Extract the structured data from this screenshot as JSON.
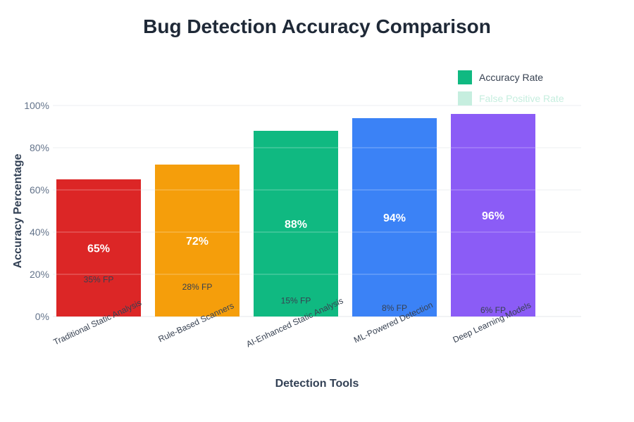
{
  "chart_data": {
    "type": "bar",
    "title": "Bug Detection Accuracy Comparison",
    "xlabel": "Detection Tools",
    "ylabel": "Accuracy Percentage",
    "ylim": [
      0,
      100
    ],
    "yticks": [
      "0%",
      "20%",
      "40%",
      "60%",
      "80%",
      "100%"
    ],
    "grid": true,
    "legend_position": "top-right",
    "categories": [
      "Traditional Static Analysis",
      "Rule-Based Scanners",
      "AI-Enhanced Static Analysis",
      "ML-Powered Detection",
      "Deep Learning Models"
    ],
    "series": [
      {
        "name": "Accuracy Rate",
        "values": [
          65,
          72,
          88,
          94,
          96
        ],
        "value_labels": [
          "65%",
          "72%",
          "88%",
          "94%",
          "96%"
        ],
        "color": "#10b981"
      },
      {
        "name": "False Positive Rate",
        "values": [
          35,
          28,
          15,
          8,
          6
        ],
        "value_labels": [
          "35% FP",
          "28% FP",
          "15% FP",
          "8% FP",
          "6% FP"
        ],
        "color": "#c6eedf"
      }
    ],
    "bar_colors": [
      "#dc2626",
      "#f59e0b",
      "#10b981",
      "#3b82f6",
      "#8b5cf6"
    ],
    "legend_text_colors": [
      "#374151",
      "#c6eedf"
    ]
  }
}
